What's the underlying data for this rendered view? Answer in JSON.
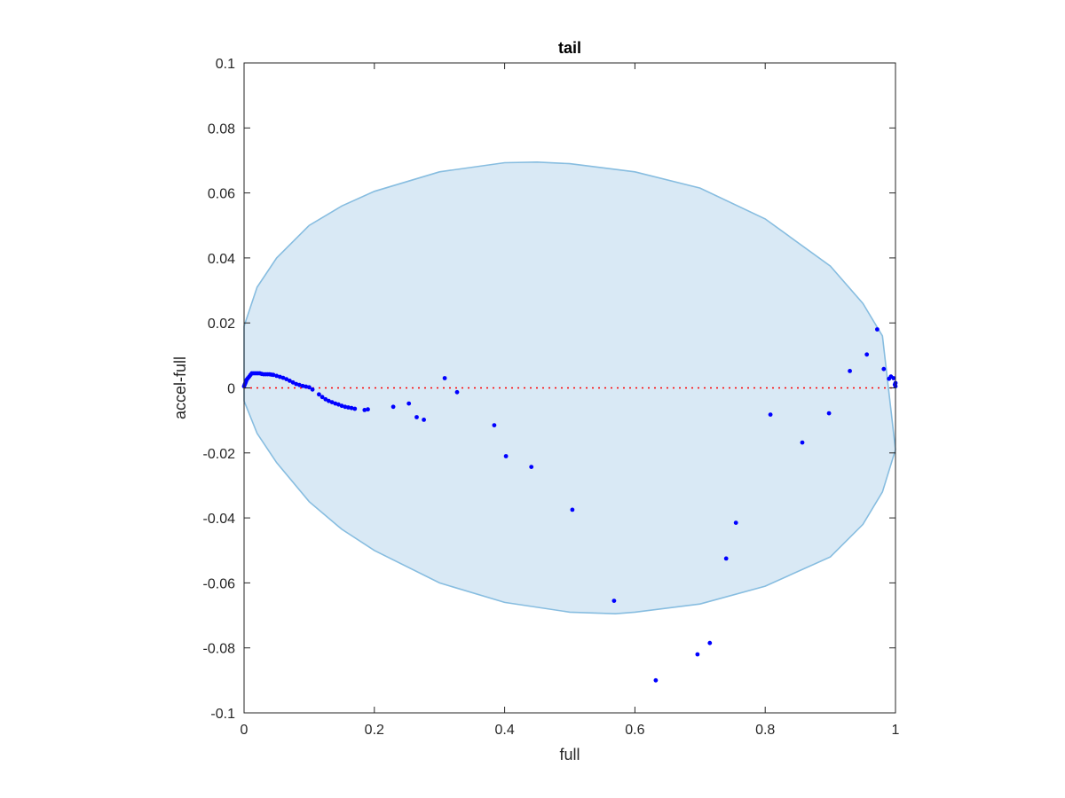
{
  "chart_data": {
    "type": "scatter",
    "title": "tail",
    "xlabel": "full",
    "ylabel": "accel-full",
    "xlim": [
      0,
      1
    ],
    "ylim": [
      -0.1,
      0.1
    ],
    "xticks": [
      0,
      0.2,
      0.4,
      0.6,
      0.8,
      1
    ],
    "xtick_labels": [
      "0",
      "0.2",
      "0.4",
      "0.6",
      "0.8",
      "1"
    ],
    "yticks": [
      -0.1,
      -0.08,
      -0.06,
      -0.04,
      -0.02,
      0,
      0.02,
      0.04,
      0.06,
      0.08,
      0.1
    ],
    "ytick_labels": [
      "-0.1",
      "-0.08",
      "-0.06",
      "-0.04",
      "-0.02",
      "0",
      "0.02",
      "0.04",
      "0.06",
      "0.08",
      "0.1"
    ],
    "grid": false,
    "colors": {
      "points": "#0000ff",
      "region_fill": "#d9e9f5",
      "region_edge": "#87bde0",
      "zero_line": "#ff0000",
      "axes": "#262626"
    },
    "zero_line": {
      "y": 0,
      "style": "dotted"
    },
    "region": {
      "x": [
        0,
        0.02,
        0.05,
        0.1,
        0.15,
        0.2,
        0.3,
        0.4,
        0.45,
        0.5,
        0.6,
        0.7,
        0.8,
        0.9,
        0.95,
        0.98,
        1,
        1,
        0.98,
        0.95,
        0.9,
        0.8,
        0.7,
        0.6,
        0.57,
        0.5,
        0.4,
        0.3,
        0.2,
        0.15,
        0.1,
        0.05,
        0.02,
        0,
        0
      ],
      "y": [
        0.019,
        0.031,
        0.04,
        0.05,
        0.056,
        0.0605,
        0.0665,
        0.0693,
        0.0695,
        0.069,
        0.0665,
        0.0615,
        0.052,
        0.0375,
        0.026,
        0.016,
        -0.019,
        -0.019,
        -0.032,
        -0.042,
        -0.052,
        -0.061,
        -0.0665,
        -0.069,
        -0.0695,
        -0.069,
        -0.066,
        -0.06,
        -0.05,
        -0.0435,
        -0.035,
        -0.023,
        -0.014,
        -0.004,
        0.019
      ]
    },
    "series": [
      {
        "x": [
          0,
          0.001,
          0.002,
          0.003,
          0.004,
          0.006,
          0.008,
          0.01,
          0.012,
          0.015,
          0.018,
          0.021,
          0.024,
          0.027,
          0.03,
          0.033,
          0.036,
          0.039,
          0.042,
          0.045,
          0.05,
          0.055,
          0.06,
          0.065,
          0.07,
          0.075,
          0.08,
          0.085,
          0.09,
          0.095,
          0.1,
          0.105,
          0.115,
          0.12,
          0.125,
          0.13,
          0.135,
          0.14,
          0.145,
          0.15,
          0.155,
          0.16,
          0.165,
          0.17,
          0.185,
          0.19,
          0.229,
          0.253,
          0.265,
          0.276,
          0.308,
          0.327,
          0.384,
          0.402,
          0.441,
          0.504,
          0.568,
          0.632,
          0.696,
          0.715,
          0.74,
          0.755,
          0.808,
          0.857,
          0.898,
          0.93,
          0.956,
          0.972,
          0.982,
          0.99,
          0.993,
          0.997,
          0.999,
          1,
          1
        ],
        "y": [
          0.0005,
          0.001,
          0.0015,
          0.002,
          0.0025,
          0.003,
          0.0035,
          0.004,
          0.0045,
          0.0045,
          0.0045,
          0.0045,
          0.0045,
          0.0043,
          0.0042,
          0.0042,
          0.0042,
          0.0042,
          0.0041,
          0.004,
          0.0037,
          0.0034,
          0.0031,
          0.0027,
          0.0022,
          0.0017,
          0.0012,
          0.0009,
          0.0006,
          0.0004,
          0.0002,
          -0.0005,
          -0.002,
          -0.0028,
          -0.0035,
          -0.004,
          -0.0044,
          -0.0048,
          -0.0051,
          -0.0055,
          -0.0058,
          -0.006,
          -0.0062,
          -0.0064,
          -0.0068,
          -0.0066,
          -0.0058,
          -0.0048,
          -0.009,
          -0.0098,
          0.003,
          -0.0013,
          -0.0115,
          -0.021,
          -0.0243,
          -0.0375,
          -0.0655,
          -0.09,
          -0.082,
          -0.0785,
          -0.0525,
          -0.0415,
          -0.0082,
          -0.0168,
          -0.0078,
          0.0052,
          0.0103,
          0.018,
          0.0058,
          0.0028,
          0.0035,
          0.003,
          0.001,
          0.0005,
          0.0015
        ]
      }
    ]
  }
}
